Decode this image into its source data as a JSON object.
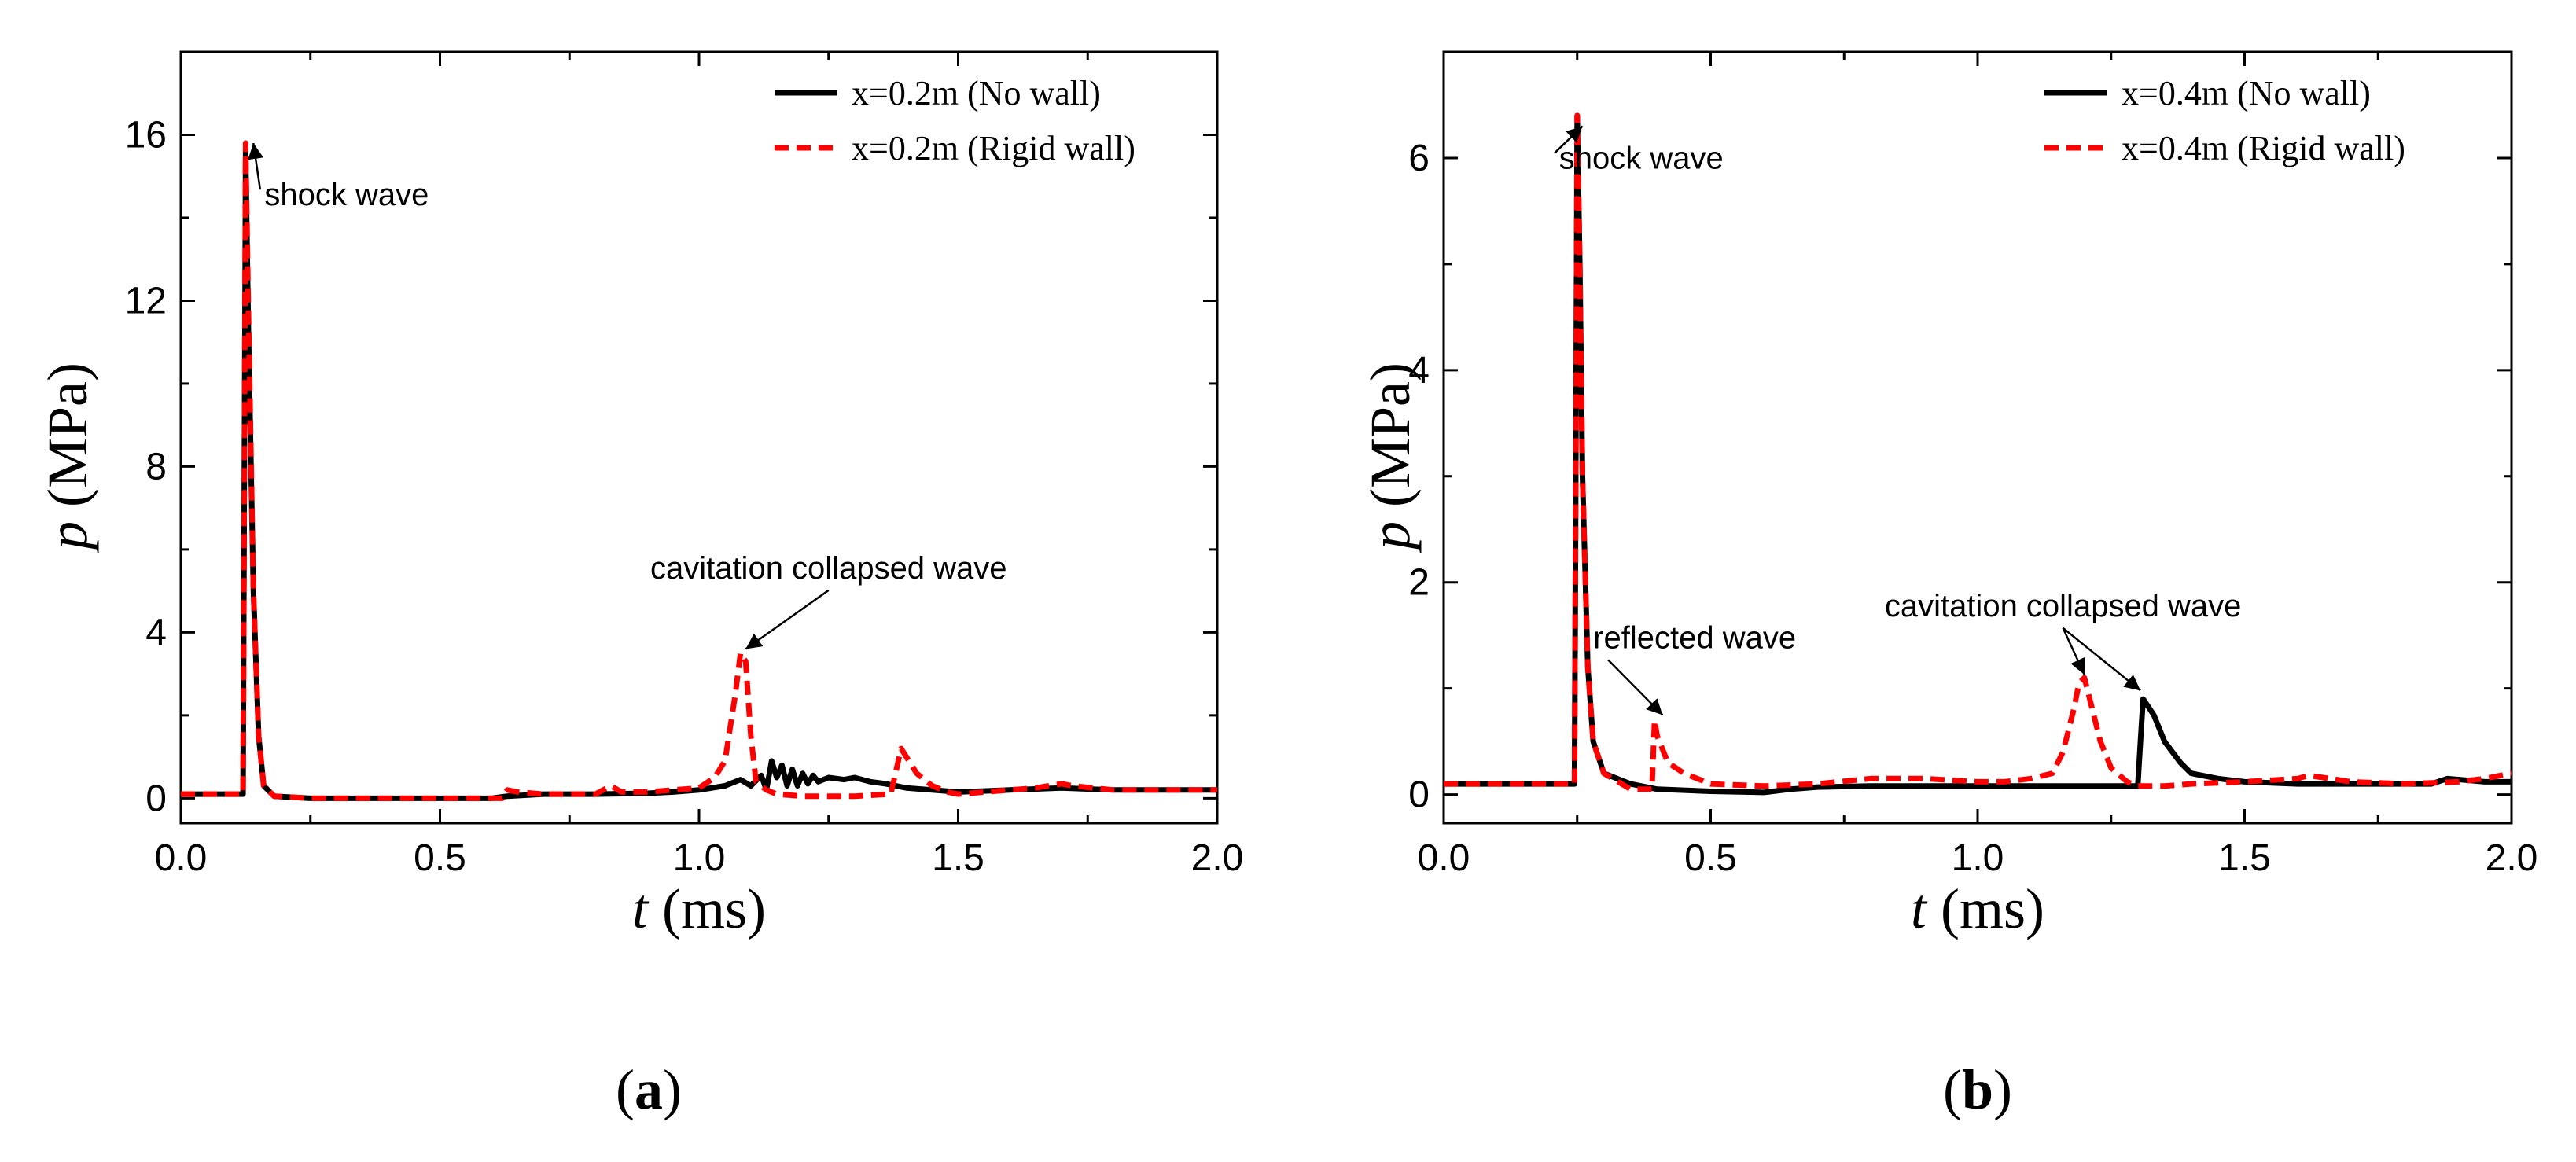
{
  "chart_data": [
    {
      "type": "line",
      "panel_label": {
        "open": "(",
        "letter": "a",
        "close": ")"
      },
      "xlabel": {
        "var": "t",
        "unit": " (ms)"
      },
      "ylabel": {
        "var": "p",
        "unit": " (MPa)"
      },
      "xlim": [
        0,
        2.0
      ],
      "ylim": [
        -0.6,
        18
      ],
      "xticks": [
        0.0,
        0.5,
        1.0,
        1.5,
        2.0
      ],
      "xtick_labels": [
        "0.0",
        "0.5",
        "1.0",
        "1.5",
        "2.0"
      ],
      "yticks": [
        0,
        4,
        8,
        12,
        16
      ],
      "ytick_labels": [
        "0",
        "4",
        "8",
        "12",
        "16"
      ],
      "legend_position": "top-right",
      "series": [
        {
          "name": "x=0.2m (No wall)",
          "color": "#000000",
          "style": "solid",
          "x": [
            0,
            0.12,
            0.125,
            0.13,
            0.14,
            0.15,
            0.16,
            0.18,
            0.25,
            0.5,
            0.6,
            0.63,
            0.7,
            0.8,
            0.9,
            0.95,
            1.0,
            1.05,
            1.08,
            1.1,
            1.12,
            1.13,
            1.14,
            1.15,
            1.16,
            1.17,
            1.18,
            1.19,
            1.2,
            1.21,
            1.22,
            1.23,
            1.25,
            1.28,
            1.3,
            1.33,
            1.36,
            1.4,
            1.45,
            1.5,
            1.6,
            1.7,
            1.8,
            1.9,
            2.0
          ],
          "y": [
            0.1,
            0.1,
            15.6,
            11.5,
            5.0,
            1.5,
            0.3,
            0.05,
            0.0,
            0.0,
            0.0,
            0.05,
            0.1,
            0.1,
            0.12,
            0.15,
            0.2,
            0.3,
            0.45,
            0.3,
            0.55,
            0.2,
            0.9,
            0.5,
            0.8,
            0.3,
            0.7,
            0.3,
            0.6,
            0.35,
            0.55,
            0.4,
            0.5,
            0.45,
            0.5,
            0.4,
            0.35,
            0.25,
            0.2,
            0.15,
            0.2,
            0.25,
            0.2,
            0.2,
            0.2
          ]
        },
        {
          "name": "x=0.2m (Rigid wall)",
          "color": "#ff0000",
          "style": "dashed",
          "x": [
            0,
            0.12,
            0.125,
            0.13,
            0.14,
            0.15,
            0.16,
            0.18,
            0.25,
            0.5,
            0.62,
            0.63,
            0.65,
            0.7,
            0.8,
            0.83,
            0.85,
            0.9,
            0.95,
            1.0,
            1.03,
            1.05,
            1.07,
            1.08,
            1.09,
            1.1,
            1.11,
            1.13,
            1.15,
            1.2,
            1.3,
            1.37,
            1.39,
            1.4,
            1.42,
            1.45,
            1.48,
            1.5,
            1.6,
            1.65,
            1.7,
            1.72,
            1.8,
            1.9,
            2.0
          ],
          "y": [
            0.1,
            0.1,
            15.8,
            12.0,
            5.0,
            1.5,
            0.3,
            0.05,
            0.0,
            0.0,
            0.0,
            0.2,
            0.15,
            0.1,
            0.1,
            0.3,
            0.15,
            0.15,
            0.2,
            0.25,
            0.5,
            0.9,
            2.5,
            3.5,
            3.3,
            1.5,
            0.4,
            0.2,
            0.1,
            0.05,
            0.05,
            0.1,
            1.2,
            1.0,
            0.6,
            0.3,
            0.15,
            0.1,
            0.2,
            0.25,
            0.35,
            0.3,
            0.2,
            0.2,
            0.2
          ]
        }
      ],
      "annotations": [
        {
          "text": "shock wave",
          "x": 0.32,
          "y": 14.3,
          "arrow_to": [
            0.14,
            15.8
          ]
        },
        {
          "text": "cavitation collapsed wave",
          "x": 1.25,
          "y": 5.3,
          "arrow_to": [
            1.09,
            3.6
          ]
        }
      ]
    },
    {
      "type": "line",
      "panel_label": {
        "open": "(",
        "letter": "b",
        "close": ")"
      },
      "xlabel": {
        "var": "t",
        "unit": " (ms)"
      },
      "ylabel": {
        "var": "p",
        "unit": " (MPa)"
      },
      "xlim": [
        0,
        2.0
      ],
      "ylim": [
        -0.27,
        7.0
      ],
      "xticks": [
        0.0,
        0.5,
        1.0,
        1.5,
        2.0
      ],
      "xtick_labels": [
        "0.0",
        "0.5",
        "1.0",
        "1.5",
        "2.0"
      ],
      "yticks": [
        0,
        2,
        4,
        6
      ],
      "ytick_labels": [
        "0",
        "2",
        "4",
        "6"
      ],
      "legend_position": "top-right",
      "series": [
        {
          "name": "x=0.4m (No wall)",
          "color": "#000000",
          "style": "solid",
          "x": [
            0,
            0.245,
            0.25,
            0.255,
            0.26,
            0.27,
            0.28,
            0.3,
            0.35,
            0.4,
            0.5,
            0.6,
            0.65,
            0.7,
            0.8,
            0.9,
            1.0,
            1.1,
            1.2,
            1.3,
            1.305,
            1.31,
            1.33,
            1.35,
            1.38,
            1.4,
            1.45,
            1.5,
            1.6,
            1.7,
            1.8,
            1.85,
            1.88,
            1.95,
            2.0
          ],
          "y": [
            0.1,
            0.1,
            6.4,
            5.0,
            3.0,
            1.2,
            0.5,
            0.2,
            0.1,
            0.05,
            0.03,
            0.02,
            0.05,
            0.07,
            0.08,
            0.08,
            0.08,
            0.08,
            0.08,
            0.08,
            0.5,
            0.9,
            0.75,
            0.5,
            0.3,
            0.2,
            0.15,
            0.12,
            0.1,
            0.1,
            0.1,
            0.1,
            0.15,
            0.12,
            0.12
          ]
        },
        {
          "name": "x=0.4m (Rigid wall)",
          "color": "#ff0000",
          "style": "dashed",
          "x": [
            0,
            0.245,
            0.25,
            0.255,
            0.26,
            0.27,
            0.28,
            0.3,
            0.35,
            0.39,
            0.395,
            0.4,
            0.42,
            0.45,
            0.5,
            0.6,
            0.7,
            0.8,
            0.9,
            1.0,
            1.05,
            1.1,
            1.14,
            1.16,
            1.18,
            1.19,
            1.2,
            1.21,
            1.23,
            1.25,
            1.28,
            1.3,
            1.35,
            1.4,
            1.5,
            1.6,
            1.62,
            1.7,
            1.8,
            1.9,
            1.95,
            2.0
          ],
          "y": [
            0.1,
            0.1,
            6.4,
            5.0,
            3.0,
            1.2,
            0.5,
            0.2,
            0.05,
            0.05,
            0.7,
            0.55,
            0.3,
            0.2,
            0.1,
            0.08,
            0.1,
            0.15,
            0.15,
            0.12,
            0.12,
            0.15,
            0.2,
            0.4,
            0.8,
            1.05,
            1.1,
            0.9,
            0.5,
            0.25,
            0.12,
            0.08,
            0.08,
            0.1,
            0.12,
            0.15,
            0.18,
            0.12,
            0.1,
            0.12,
            0.15,
            0.2
          ]
        }
      ],
      "annotations": [
        {
          "text": "shock wave",
          "x": 0.37,
          "y": 5.9,
          "arrow_to": [
            0.26,
            6.3
          ]
        },
        {
          "text": "reflected wave",
          "x": 0.47,
          "y": 1.38,
          "arrow_to": [
            0.41,
            0.75
          ]
        },
        {
          "text": "cavitation collapsed wave",
          "x": 1.16,
          "y": 1.68,
          "arrow_to": [
            [
              1.2,
              1.13
            ],
            [
              1.305,
              0.98
            ]
          ]
        }
      ]
    }
  ]
}
